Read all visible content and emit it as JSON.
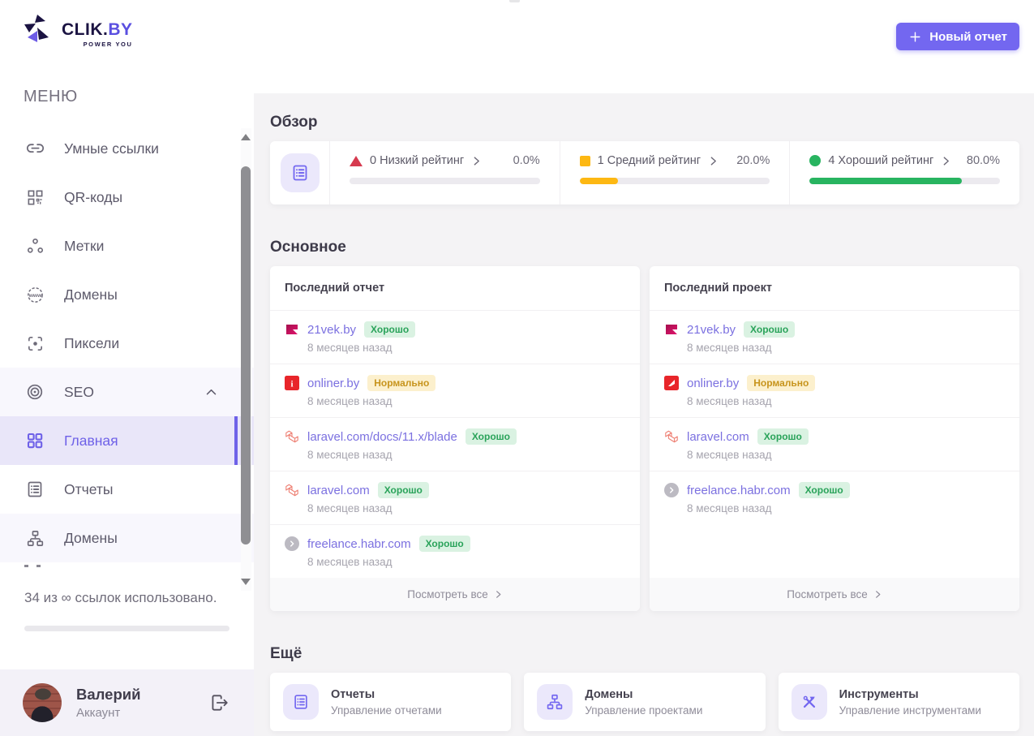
{
  "brand": {
    "name_primary": "CLIK.",
    "name_accent": "BY",
    "tagline": "POWER YOU"
  },
  "sidebar": {
    "menu_label": "МЕНЮ",
    "items": [
      {
        "label": "Умные ссылки"
      },
      {
        "label": "QR-коды"
      },
      {
        "label": "Метки"
      },
      {
        "label": "Домены"
      },
      {
        "label": "Пиксели"
      },
      {
        "label": "SEO"
      },
      {
        "label": "Главная"
      },
      {
        "label": "Отчеты"
      },
      {
        "label": "Домены"
      }
    ],
    "usage_text": "34 из ∞ ссылок использовано.",
    "user": {
      "name": "Валерий",
      "role": "Аккаунт"
    }
  },
  "topbar": {
    "new_report_label": "Новый отчет"
  },
  "overview": {
    "title": "Обзор",
    "stats": [
      {
        "label": "0 Низкий рейтинг",
        "percent": "0.0%",
        "value": 0,
        "color": "#d63a4f"
      },
      {
        "label": "1 Средний рейтинг",
        "percent": "20.0%",
        "value": 20,
        "color": "#fdb813"
      },
      {
        "label": "4 Хороший рейтинг",
        "percent": "80.0%",
        "value": 80,
        "color": "#28b460"
      }
    ]
  },
  "main": {
    "title": "Основное",
    "cards": [
      {
        "title": "Последний отчет",
        "view_all": "Посмотреть все",
        "items": [
          {
            "site": "21vek.by",
            "badge": "Хорошо",
            "time": "8 месяцев назад"
          },
          {
            "site": "onliner.by",
            "badge": "Нормально",
            "time": "8 месяцев назад"
          },
          {
            "site": "laravel.com/docs/11.x/blade",
            "badge": "Хорошо",
            "time": "8 месяцев назад"
          },
          {
            "site": "laravel.com",
            "badge": "Хорошо",
            "time": "8 месяцев назад"
          },
          {
            "site": "freelance.habr.com",
            "badge": "Хорошо",
            "time": "8 месяцев назад"
          }
        ]
      },
      {
        "title": "Последний проект",
        "view_all": "Посмотреть все",
        "items": [
          {
            "site": "21vek.by",
            "badge": "Хорошо",
            "time": "8 месяцев назад"
          },
          {
            "site": "onliner.by",
            "badge": "Нормально",
            "time": "8 месяцев назад"
          },
          {
            "site": "laravel.com",
            "badge": "Хорошо",
            "time": "8 месяцев назад"
          },
          {
            "site": "freelance.habr.com",
            "badge": "Хорошо",
            "time": "8 месяцев назад"
          }
        ]
      }
    ]
  },
  "more": {
    "title": "Ещё",
    "cards": [
      {
        "title": "Отчеты",
        "subtitle": "Управление отчетами"
      },
      {
        "title": "Домены",
        "subtitle": "Управление проектами"
      },
      {
        "title": "Инструменты",
        "subtitle": "Управление инструментами"
      }
    ]
  },
  "colors": {
    "accent": "#7367f0",
    "success": "#28b460",
    "warning": "#fdb813",
    "danger": "#d63a4f"
  }
}
